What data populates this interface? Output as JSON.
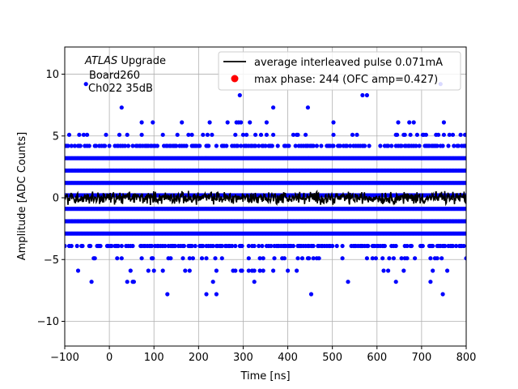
{
  "chart_data": {
    "type": "scatter",
    "xlabel": "Time [ns]",
    "ylabel": "Amplitude [ADC Counts]",
    "xlim": [
      -100,
      800
    ],
    "ylim": [
      -12,
      12.2
    ],
    "x_ticks": [
      -100,
      0,
      100,
      200,
      300,
      400,
      500,
      600,
      700,
      800
    ],
    "y_ticks": [
      -10,
      -5,
      0,
      5,
      10
    ],
    "grid": true,
    "legend_position": "top-right",
    "annotation": {
      "italic": "ATLAS",
      "rest": " Upgrade",
      "line2": "Board260",
      "line3": "Ch022 35dB"
    },
    "series": [
      {
        "name": "average interleaved pulse 0.071mA",
        "type": "line",
        "color": "#000000",
        "description": "near-zero noisy average, values fluctuate within about -0.8 to 0.7 ADC counts",
        "y_range": [
          -0.8,
          0.7
        ]
      },
      {
        "name": "max phase: 244 (OFC amp=0.427)",
        "type": "scatter",
        "color": "#0000ff",
        "legend_marker_color": "#ff0000",
        "levels": [
          -8.8,
          -7.8,
          -6.8,
          -5.9,
          -4.9,
          -3.9,
          -2.9,
          -1.9,
          -0.9,
          0.2,
          1.2,
          2.2,
          3.2,
          4.2,
          5.1,
          6.1,
          7.3,
          8.3,
          9.2
        ],
        "level_density": [
          0.002,
          0.01,
          0.02,
          0.05,
          0.12,
          0.5,
          1.0,
          1.0,
          1.0,
          1.0,
          1.0,
          1.0,
          1.0,
          0.5,
          0.12,
          0.05,
          0.015,
          0.008,
          0.003
        ]
      }
    ]
  }
}
